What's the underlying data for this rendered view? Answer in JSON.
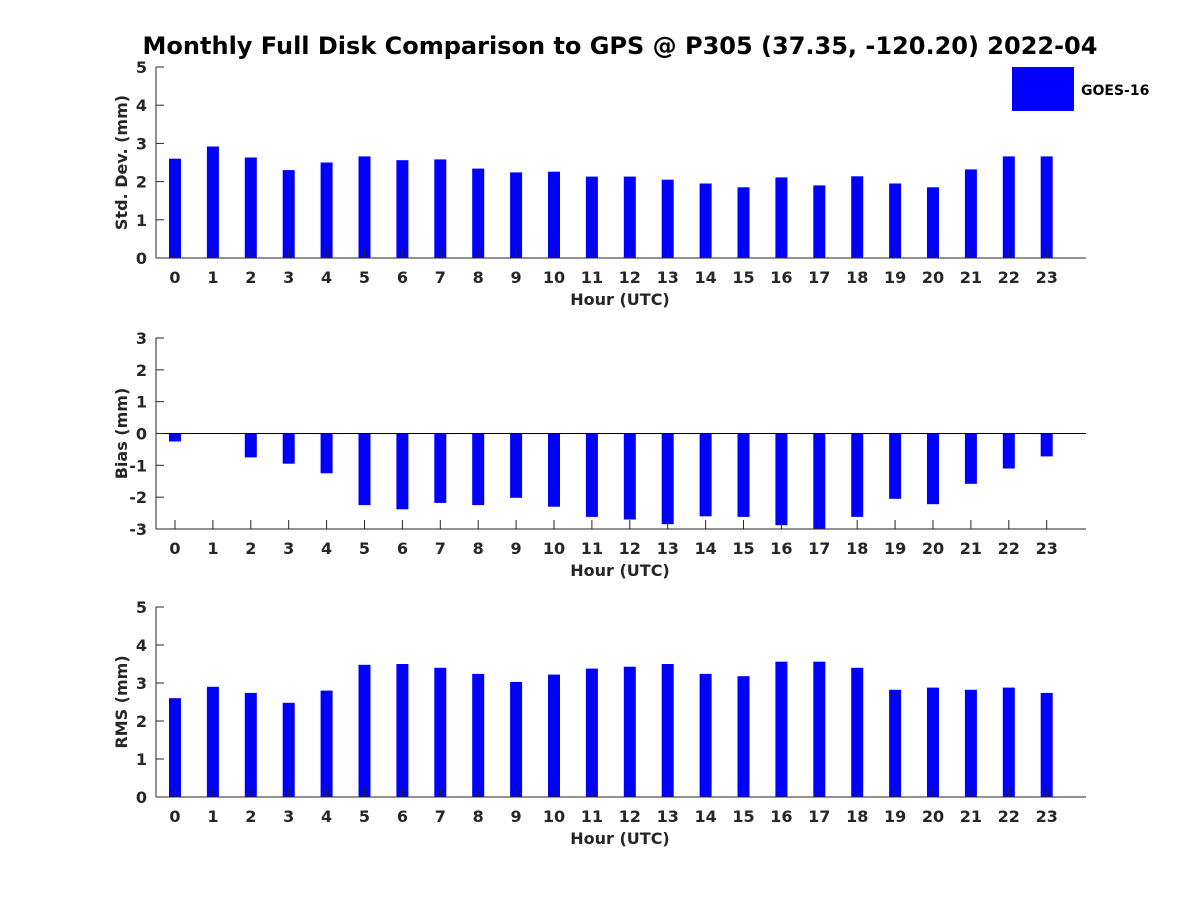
{
  "chart_data": {
    "title": "Monthly Full Disk Comparison to GPS @ P305 (37.35, -120.20) 2022-04",
    "legend": {
      "label": "GOES-16",
      "placement": "top-right",
      "color": "#0000ff"
    },
    "bar_color": "#0000ff",
    "panels": [
      {
        "type": "bar",
        "ylabel": "Std. Dev. (mm)",
        "xlabel": "Hour (UTC)",
        "ylim": [
          0,
          5
        ],
        "yticks": [
          "0",
          "1",
          "2",
          "3",
          "4",
          "5"
        ],
        "categories": [
          "0",
          "1",
          "2",
          "3",
          "4",
          "5",
          "6",
          "7",
          "8",
          "9",
          "10",
          "11",
          "12",
          "13",
          "14",
          "15",
          "16",
          "17",
          "18",
          "19",
          "20",
          "21",
          "22",
          "23"
        ],
        "values": [
          2.6,
          2.92,
          2.63,
          2.3,
          2.5,
          2.66,
          2.56,
          2.58,
          2.34,
          2.24,
          2.26,
          2.13,
          2.13,
          2.05,
          1.95,
          1.85,
          2.11,
          1.9,
          2.14,
          1.95,
          1.85,
          2.32,
          2.66,
          2.66
        ]
      },
      {
        "type": "bar",
        "ylabel": "Bias (mm)",
        "xlabel": "Hour (UTC)",
        "ylim": [
          -3,
          3
        ],
        "yticks": [
          "-3",
          "-2",
          "-1",
          "0",
          "1",
          "2",
          "3"
        ],
        "zero_line": true,
        "categories": [
          "0",
          "1",
          "2",
          "3",
          "4",
          "5",
          "6",
          "7",
          "8",
          "9",
          "10",
          "11",
          "12",
          "13",
          "14",
          "15",
          "16",
          "17",
          "18",
          "19",
          "20",
          "21",
          "22",
          "23"
        ],
        "values": [
          -0.25,
          0,
          -0.75,
          -0.95,
          -1.25,
          -2.25,
          -2.38,
          -2.18,
          -2.25,
          -2.02,
          -2.3,
          -2.62,
          -2.7,
          -2.85,
          -2.6,
          -2.62,
          -2.88,
          -3.0,
          -2.62,
          -2.05,
          -2.22,
          -1.58,
          -1.1,
          -0.72
        ]
      },
      {
        "type": "bar",
        "ylabel": "RMS (mm)",
        "xlabel": "Hour (UTC)",
        "ylim": [
          0,
          5
        ],
        "yticks": [
          "0",
          "1",
          "2",
          "3",
          "4",
          "5"
        ],
        "categories": [
          "0",
          "1",
          "2",
          "3",
          "4",
          "5",
          "6",
          "7",
          "8",
          "9",
          "10",
          "11",
          "12",
          "13",
          "14",
          "15",
          "16",
          "17",
          "18",
          "19",
          "20",
          "21",
          "22",
          "23"
        ],
        "values": [
          2.6,
          2.9,
          2.74,
          2.48,
          2.8,
          3.48,
          3.5,
          3.4,
          3.24,
          3.03,
          3.22,
          3.38,
          3.43,
          3.5,
          3.24,
          3.18,
          3.56,
          3.56,
          3.4,
          2.82,
          2.88,
          2.82,
          2.88,
          2.74
        ]
      }
    ]
  }
}
